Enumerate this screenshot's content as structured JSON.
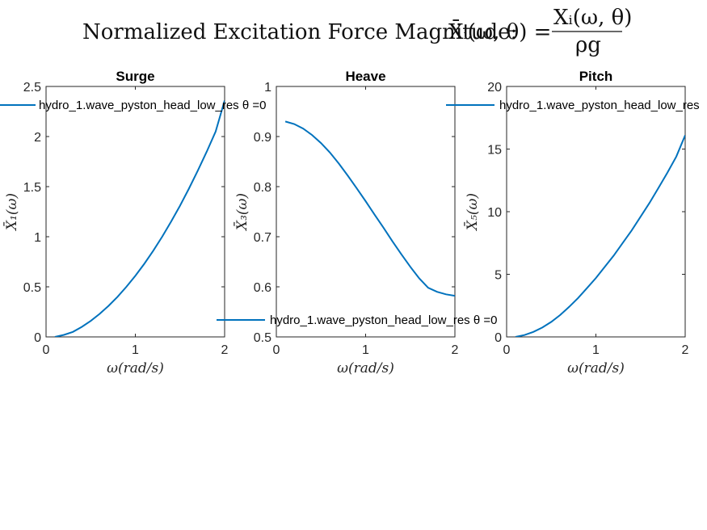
{
  "figure": {
    "supertitle_text": "Normalized Excitation Force Magnitude: ",
    "supertitle_lhs": "X̄ᵢ(ω, θ) =",
    "supertitle_num": "Xᵢ(ω, θ)",
    "supertitle_den": "ρg"
  },
  "colors": {
    "series": "#0072BD",
    "axes": "#262626"
  },
  "chart_data": [
    {
      "type": "line",
      "title": "Surge",
      "xlabel": "ω(rad/s)",
      "ylabel": "X̄₁(ω)",
      "xlim": [
        0,
        2
      ],
      "ylim": [
        0,
        2.5
      ],
      "xticks": [
        0,
        1,
        2
      ],
      "yticks": [
        0,
        0.5,
        1,
        1.5,
        2,
        2.5
      ],
      "ytick_labels": [
        "0",
        "0.5",
        "1",
        "1.5",
        "2",
        "2.5"
      ],
      "legend": "top-left",
      "series": [
        {
          "name": "hydro_1.wave_pyston_head_low_res θ =0",
          "x": [
            0.1,
            0.2,
            0.3,
            0.4,
            0.5,
            0.6,
            0.7,
            0.8,
            0.9,
            1.0,
            1.1,
            1.2,
            1.3,
            1.4,
            1.5,
            1.6,
            1.7,
            1.8,
            1.9,
            2.0
          ],
          "values": [
            0.0,
            0.02,
            0.05,
            0.1,
            0.16,
            0.23,
            0.31,
            0.4,
            0.5,
            0.61,
            0.73,
            0.86,
            1.0,
            1.15,
            1.31,
            1.48,
            1.66,
            1.85,
            2.05,
            2.36
          ]
        }
      ]
    },
    {
      "type": "line",
      "title": "Heave",
      "xlabel": "ω(rad/s)",
      "ylabel": "X̄₃(ω)",
      "xlim": [
        0,
        2
      ],
      "ylim": [
        0.5,
        1
      ],
      "xticks": [
        0,
        1,
        2
      ],
      "yticks": [
        0.5,
        0.6,
        0.7,
        0.8,
        0.9,
        1
      ],
      "ytick_labels": [
        "0.5",
        "0.6",
        "0.7",
        "0.8",
        "0.9",
        "1"
      ],
      "legend": "bottom-left",
      "series": [
        {
          "name": "hydro_1.wave_pyston_head_low_res θ =0",
          "x": [
            0.1,
            0.2,
            0.3,
            0.4,
            0.5,
            0.6,
            0.7,
            0.8,
            0.9,
            1.0,
            1.1,
            1.2,
            1.3,
            1.4,
            1.5,
            1.6,
            1.7,
            1.8,
            1.9,
            2.0
          ],
          "values": [
            0.93,
            0.925,
            0.916,
            0.903,
            0.887,
            0.868,
            0.846,
            0.822,
            0.797,
            0.771,
            0.744,
            0.718,
            0.691,
            0.665,
            0.64,
            0.617,
            0.598,
            0.59,
            0.585,
            0.582
          ]
        }
      ]
    },
    {
      "type": "line",
      "title": "Pitch",
      "xlabel": "ω(rad/s)",
      "ylabel": "X̄₅(ω)",
      "xlim": [
        0,
        2
      ],
      "ylim": [
        0,
        20
      ],
      "xticks": [
        0,
        1,
        2
      ],
      "yticks": [
        0,
        5,
        10,
        15,
        20
      ],
      "ytick_labels": [
        "0",
        "5",
        "10",
        "15",
        "20"
      ],
      "legend": "top-left",
      "series": [
        {
          "name": "hydro_1.wave_pyston_head_low_res",
          "x": [
            0.1,
            0.2,
            0.3,
            0.4,
            0.5,
            0.6,
            0.7,
            0.8,
            0.9,
            1.0,
            1.1,
            1.2,
            1.3,
            1.4,
            1.5,
            1.6,
            1.7,
            1.8,
            1.9,
            2.0
          ],
          "values": [
            0.0,
            0.15,
            0.4,
            0.75,
            1.2,
            1.75,
            2.4,
            3.1,
            3.9,
            4.7,
            5.6,
            6.5,
            7.5,
            8.5,
            9.6,
            10.7,
            11.9,
            13.1,
            14.4,
            16.1
          ]
        }
      ]
    }
  ]
}
